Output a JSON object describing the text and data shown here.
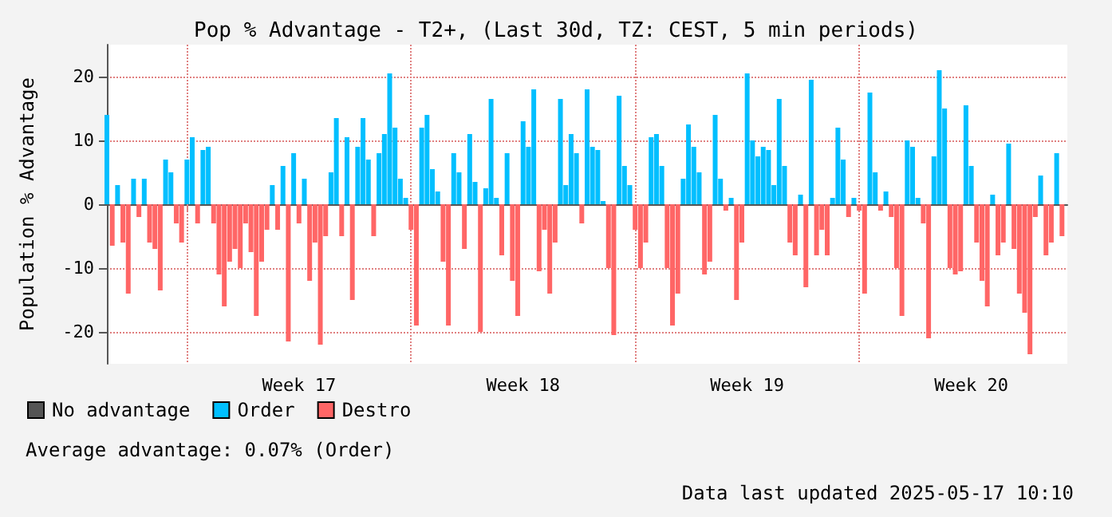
{
  "chart_data": {
    "type": "bar",
    "title": "Pop % Advantage - T2+, (Last 30d, TZ: CEST, 5 min periods)",
    "ylabel": "Population % Advantage",
    "annotations": [
      "Average advantage: 0.07% (Order)",
      "Data last updated 2025-05-17 10:10"
    ],
    "x": [
      "2025-04-18T12:00",
      "2025-04-18T16:00",
      "2025-04-18T20:00",
      "2025-04-19T00:00",
      "2025-04-19T04:00",
      "2025-04-19T08:00",
      "2025-04-19T12:00",
      "2025-04-19T16:00",
      "2025-04-19T20:00",
      "2025-04-20T00:00",
      "2025-04-20T04:00",
      "2025-04-20T08:00",
      "2025-04-20T12:00",
      "2025-04-20T16:00",
      "2025-04-20T20:00",
      "2025-04-21T00:00",
      "2025-04-21T04:00",
      "2025-04-21T08:00",
      "2025-04-21T12:00",
      "2025-04-21T16:00",
      "2025-04-21T20:00",
      "2025-04-22T00:00",
      "2025-04-22T04:00",
      "2025-04-22T08:00",
      "2025-04-22T12:00",
      "2025-04-22T16:00",
      "2025-04-22T20:00",
      "2025-04-23T00:00",
      "2025-04-23T04:00",
      "2025-04-23T08:00",
      "2025-04-23T12:00",
      "2025-04-23T16:00",
      "2025-04-23T20:00",
      "2025-04-24T00:00",
      "2025-04-24T04:00",
      "2025-04-24T08:00",
      "2025-04-24T12:00",
      "2025-04-24T16:00",
      "2025-04-24T20:00",
      "2025-04-25T00:00",
      "2025-04-25T04:00",
      "2025-04-25T08:00",
      "2025-04-25T12:00",
      "2025-04-25T16:00",
      "2025-04-25T20:00",
      "2025-04-26T00:00",
      "2025-04-26T04:00",
      "2025-04-26T08:00",
      "2025-04-26T12:00",
      "2025-04-26T16:00",
      "2025-04-26T20:00",
      "2025-04-27T00:00",
      "2025-04-27T04:00",
      "2025-04-27T08:00",
      "2025-04-27T12:00",
      "2025-04-27T16:00",
      "2025-04-27T20:00",
      "2025-04-28T00:00",
      "2025-04-28T04:00",
      "2025-04-28T08:00",
      "2025-04-28T12:00",
      "2025-04-28T16:00",
      "2025-04-28T20:00",
      "2025-04-29T00:00",
      "2025-04-29T04:00",
      "2025-04-29T08:00",
      "2025-04-29T12:00",
      "2025-04-29T16:00",
      "2025-04-29T20:00",
      "2025-04-30T00:00",
      "2025-04-30T04:00",
      "2025-04-30T08:00",
      "2025-04-30T12:00",
      "2025-04-30T16:00",
      "2025-04-30T20:00",
      "2025-05-01T00:00",
      "2025-05-01T04:00",
      "2025-05-01T08:00",
      "2025-05-01T12:00",
      "2025-05-01T16:00",
      "2025-05-01T20:00",
      "2025-05-02T00:00",
      "2025-05-02T04:00",
      "2025-05-02T08:00",
      "2025-05-02T12:00",
      "2025-05-02T16:00",
      "2025-05-02T20:00",
      "2025-05-03T00:00",
      "2025-05-03T04:00",
      "2025-05-03T08:00",
      "2025-05-03T12:00",
      "2025-05-03T16:00",
      "2025-05-03T20:00",
      "2025-05-04T00:00",
      "2025-05-04T04:00",
      "2025-05-04T08:00",
      "2025-05-04T12:00",
      "2025-05-04T16:00",
      "2025-05-04T20:00",
      "2025-05-05T00:00",
      "2025-05-05T04:00",
      "2025-05-05T08:00",
      "2025-05-05T12:00",
      "2025-05-05T16:00",
      "2025-05-05T20:00",
      "2025-05-06T00:00",
      "2025-05-06T04:00",
      "2025-05-06T08:00",
      "2025-05-06T12:00",
      "2025-05-06T16:00",
      "2025-05-06T20:00",
      "2025-05-07T00:00",
      "2025-05-07T04:00",
      "2025-05-07T08:00",
      "2025-05-07T12:00",
      "2025-05-07T16:00",
      "2025-05-07T20:00",
      "2025-05-08T00:00",
      "2025-05-08T04:00",
      "2025-05-08T08:00",
      "2025-05-08T12:00",
      "2025-05-08T16:00",
      "2025-05-08T20:00",
      "2025-05-09T00:00",
      "2025-05-09T04:00",
      "2025-05-09T08:00",
      "2025-05-09T12:00",
      "2025-05-09T16:00",
      "2025-05-09T20:00",
      "2025-05-10T00:00",
      "2025-05-10T04:00",
      "2025-05-10T08:00",
      "2025-05-10T12:00",
      "2025-05-10T16:00",
      "2025-05-10T20:00",
      "2025-05-11T00:00",
      "2025-05-11T04:00",
      "2025-05-11T08:00",
      "2025-05-11T12:00",
      "2025-05-11T16:00",
      "2025-05-11T20:00",
      "2025-05-12T00:00",
      "2025-05-12T04:00",
      "2025-05-12T08:00",
      "2025-05-12T12:00",
      "2025-05-12T16:00",
      "2025-05-12T20:00",
      "2025-05-13T00:00",
      "2025-05-13T04:00",
      "2025-05-13T08:00",
      "2025-05-13T12:00",
      "2025-05-13T16:00",
      "2025-05-13T20:00",
      "2025-05-14T00:00",
      "2025-05-14T04:00",
      "2025-05-14T08:00",
      "2025-05-14T12:00",
      "2025-05-14T16:00",
      "2025-05-14T20:00",
      "2025-05-15T00:00",
      "2025-05-15T04:00",
      "2025-05-15T08:00",
      "2025-05-15T12:00",
      "2025-05-15T16:00",
      "2025-05-15T20:00",
      "2025-05-16T00:00",
      "2025-05-16T04:00",
      "2025-05-16T08:00",
      "2025-05-16T12:00",
      "2025-05-16T16:00",
      "2025-05-16T20:00",
      "2025-05-17T00:00",
      "2025-05-17T04:00",
      "2025-05-17T08:00",
      "2025-05-17T12:00",
      "2025-05-17T16:00",
      "2025-05-17T20:00",
      "2025-05-18T00:00",
      "2025-05-18T04:00",
      "2025-05-18T08:00"
    ],
    "series": [
      {
        "name": "No advantage",
        "color": "#555555",
        "values": [
          null,
          null,
          null,
          null,
          null,
          null,
          null,
          null,
          null,
          null,
          null,
          null,
          null,
          null,
          null,
          null,
          null,
          null,
          null,
          null,
          null,
          null,
          null,
          null,
          null,
          null,
          null,
          null,
          null,
          null,
          null,
          null,
          null,
          null,
          null,
          null,
          null,
          null,
          null,
          null,
          null,
          null,
          null,
          null,
          null,
          null,
          null,
          null,
          null,
          null,
          null,
          null,
          null,
          null,
          null,
          null,
          null,
          null,
          null,
          null,
          null,
          null,
          null,
          null,
          null,
          null,
          null,
          null,
          null,
          null,
          null,
          null,
          null,
          null,
          null,
          null,
          null,
          null,
          null,
          null,
          null,
          null,
          null,
          null,
          null,
          null,
          null,
          null,
          null,
          null,
          null,
          null,
          null,
          null,
          null,
          null,
          null,
          null,
          null,
          null,
          null,
          null,
          null,
          null,
          null,
          null,
          null,
          null,
          null,
          null,
          null,
          null,
          null,
          null,
          null,
          null,
          null,
          null,
          null,
          null,
          null,
          null,
          null,
          null,
          null,
          null,
          null,
          null,
          null,
          null,
          null,
          null,
          null,
          null,
          null,
          null,
          null,
          null,
          null,
          null,
          null,
          null,
          null,
          null,
          null,
          null,
          null,
          null,
          null,
          null,
          null,
          null,
          null,
          null,
          null,
          null,
          null,
          null,
          null,
          null,
          null,
          null,
          null,
          null,
          null,
          null,
          null,
          null,
          null,
          null,
          null,
          null,
          null,
          null,
          null,
          null,
          null,
          null,
          null,
          null
        ]
      },
      {
        "name": "Order",
        "color": "#00bfff",
        "values": [
          14,
          null,
          3,
          null,
          null,
          4,
          null,
          4,
          null,
          null,
          null,
          7,
          5,
          null,
          null,
          7,
          10.5,
          null,
          8.5,
          9,
          null,
          null,
          null,
          null,
          null,
          null,
          null,
          null,
          null,
          null,
          null,
          3,
          null,
          6,
          null,
          8,
          null,
          4,
          null,
          null,
          null,
          null,
          5,
          13.5,
          null,
          10.5,
          null,
          9,
          13.5,
          7,
          null,
          8,
          11,
          20.5,
          12,
          4,
          1,
          null,
          null,
          12,
          14,
          5.5,
          2,
          null,
          null,
          8,
          5,
          null,
          11,
          3.5,
          null,
          2.5,
          16.5,
          1,
          null,
          8,
          null,
          null,
          13,
          9,
          18,
          null,
          null,
          null,
          null,
          16.5,
          3,
          11,
          8,
          null,
          18,
          9,
          8.5,
          0.5,
          null,
          null,
          17,
          6,
          3,
          null,
          null,
          null,
          10.5,
          11,
          6,
          null,
          null,
          null,
          4,
          12.5,
          9,
          5,
          null,
          null,
          14,
          4,
          null,
          1,
          null,
          null,
          20.5,
          10,
          7.5,
          9,
          8.5,
          3,
          16.5,
          6,
          null,
          null,
          1.5,
          null,
          19.5,
          null,
          null,
          null,
          1,
          12,
          7,
          null,
          1,
          null,
          null,
          17.5,
          5,
          null,
          2,
          null,
          null,
          null,
          10,
          9,
          1,
          null,
          null,
          7.5,
          21,
          15,
          null,
          null,
          null,
          15.5,
          6,
          null,
          null,
          null,
          1.5,
          null,
          null,
          9.5,
          null,
          null,
          null,
          null,
          null,
          4.5,
          null,
          null,
          8,
          null
        ]
      },
      {
        "name": "Destro",
        "color": "#ff6666",
        "values": [
          null,
          -6.5,
          null,
          -6,
          -14,
          null,
          -2,
          null,
          -6,
          -7,
          -13.5,
          null,
          null,
          -3,
          -6,
          null,
          null,
          -3,
          null,
          null,
          -3,
          -11,
          -16,
          -9,
          -7,
          -10,
          -3,
          -7.5,
          -17.5,
          -9,
          -4,
          null,
          -4,
          null,
          -21.5,
          null,
          -3,
          null,
          -12,
          -6,
          -22,
          -5,
          null,
          null,
          -5,
          null,
          -15,
          null,
          null,
          null,
          -5,
          null,
          null,
          null,
          null,
          null,
          null,
          -4,
          -19,
          null,
          null,
          null,
          null,
          -9,
          -19,
          null,
          null,
          -7,
          null,
          null,
          -20,
          null,
          null,
          null,
          -8,
          null,
          -12,
          -17.5,
          null,
          null,
          null,
          -10.5,
          -4,
          -14,
          -6,
          null,
          null,
          null,
          null,
          -3,
          null,
          null,
          null,
          null,
          -10,
          -20.5,
          null,
          null,
          null,
          -4,
          -10,
          -6,
          null,
          null,
          null,
          -10,
          -19,
          -14,
          null,
          null,
          null,
          null,
          -11,
          -9,
          null,
          null,
          -1,
          null,
          -15,
          -6,
          null,
          null,
          null,
          null,
          null,
          null,
          null,
          null,
          -6,
          -8,
          null,
          -13,
          null,
          -8,
          -4,
          -8,
          null,
          null,
          null,
          -2,
          null,
          -1,
          -14,
          null,
          null,
          -1,
          null,
          -2,
          -10,
          -17.5,
          null,
          null,
          null,
          -3,
          -21,
          null,
          null,
          null,
          -10,
          -11,
          -10.5,
          null,
          null,
          -6,
          -12,
          -16,
          null,
          -8,
          -6,
          null,
          -7,
          -14,
          -17,
          -23.5,
          -2,
          null,
          -8,
          -6,
          null,
          -5
        ]
      }
    ],
    "xlim": [
      "2025-04-18T12:00",
      "2025-05-18T12:00"
    ],
    "xticks": [
      {
        "value": "2025-04-21T00:00",
        "label": null
      },
      {
        "value": "2025-04-24T12:00",
        "label": "Week 17"
      },
      {
        "value": "2025-04-28T00:00",
        "label": null
      },
      {
        "value": "2025-05-01T12:00",
        "label": "Week 18"
      },
      {
        "value": "2025-05-05T00:00",
        "label": null
      },
      {
        "value": "2025-05-08T12:00",
        "label": "Week 19"
      },
      {
        "value": "2025-05-12T00:00",
        "label": null
      },
      {
        "value": "2025-05-15T12:00",
        "label": "Week 20"
      }
    ],
    "ylim": [
      -25,
      25
    ],
    "yticks": [
      -20,
      -10,
      0,
      10,
      20
    ],
    "grid": true,
    "legend": "bottom left"
  }
}
